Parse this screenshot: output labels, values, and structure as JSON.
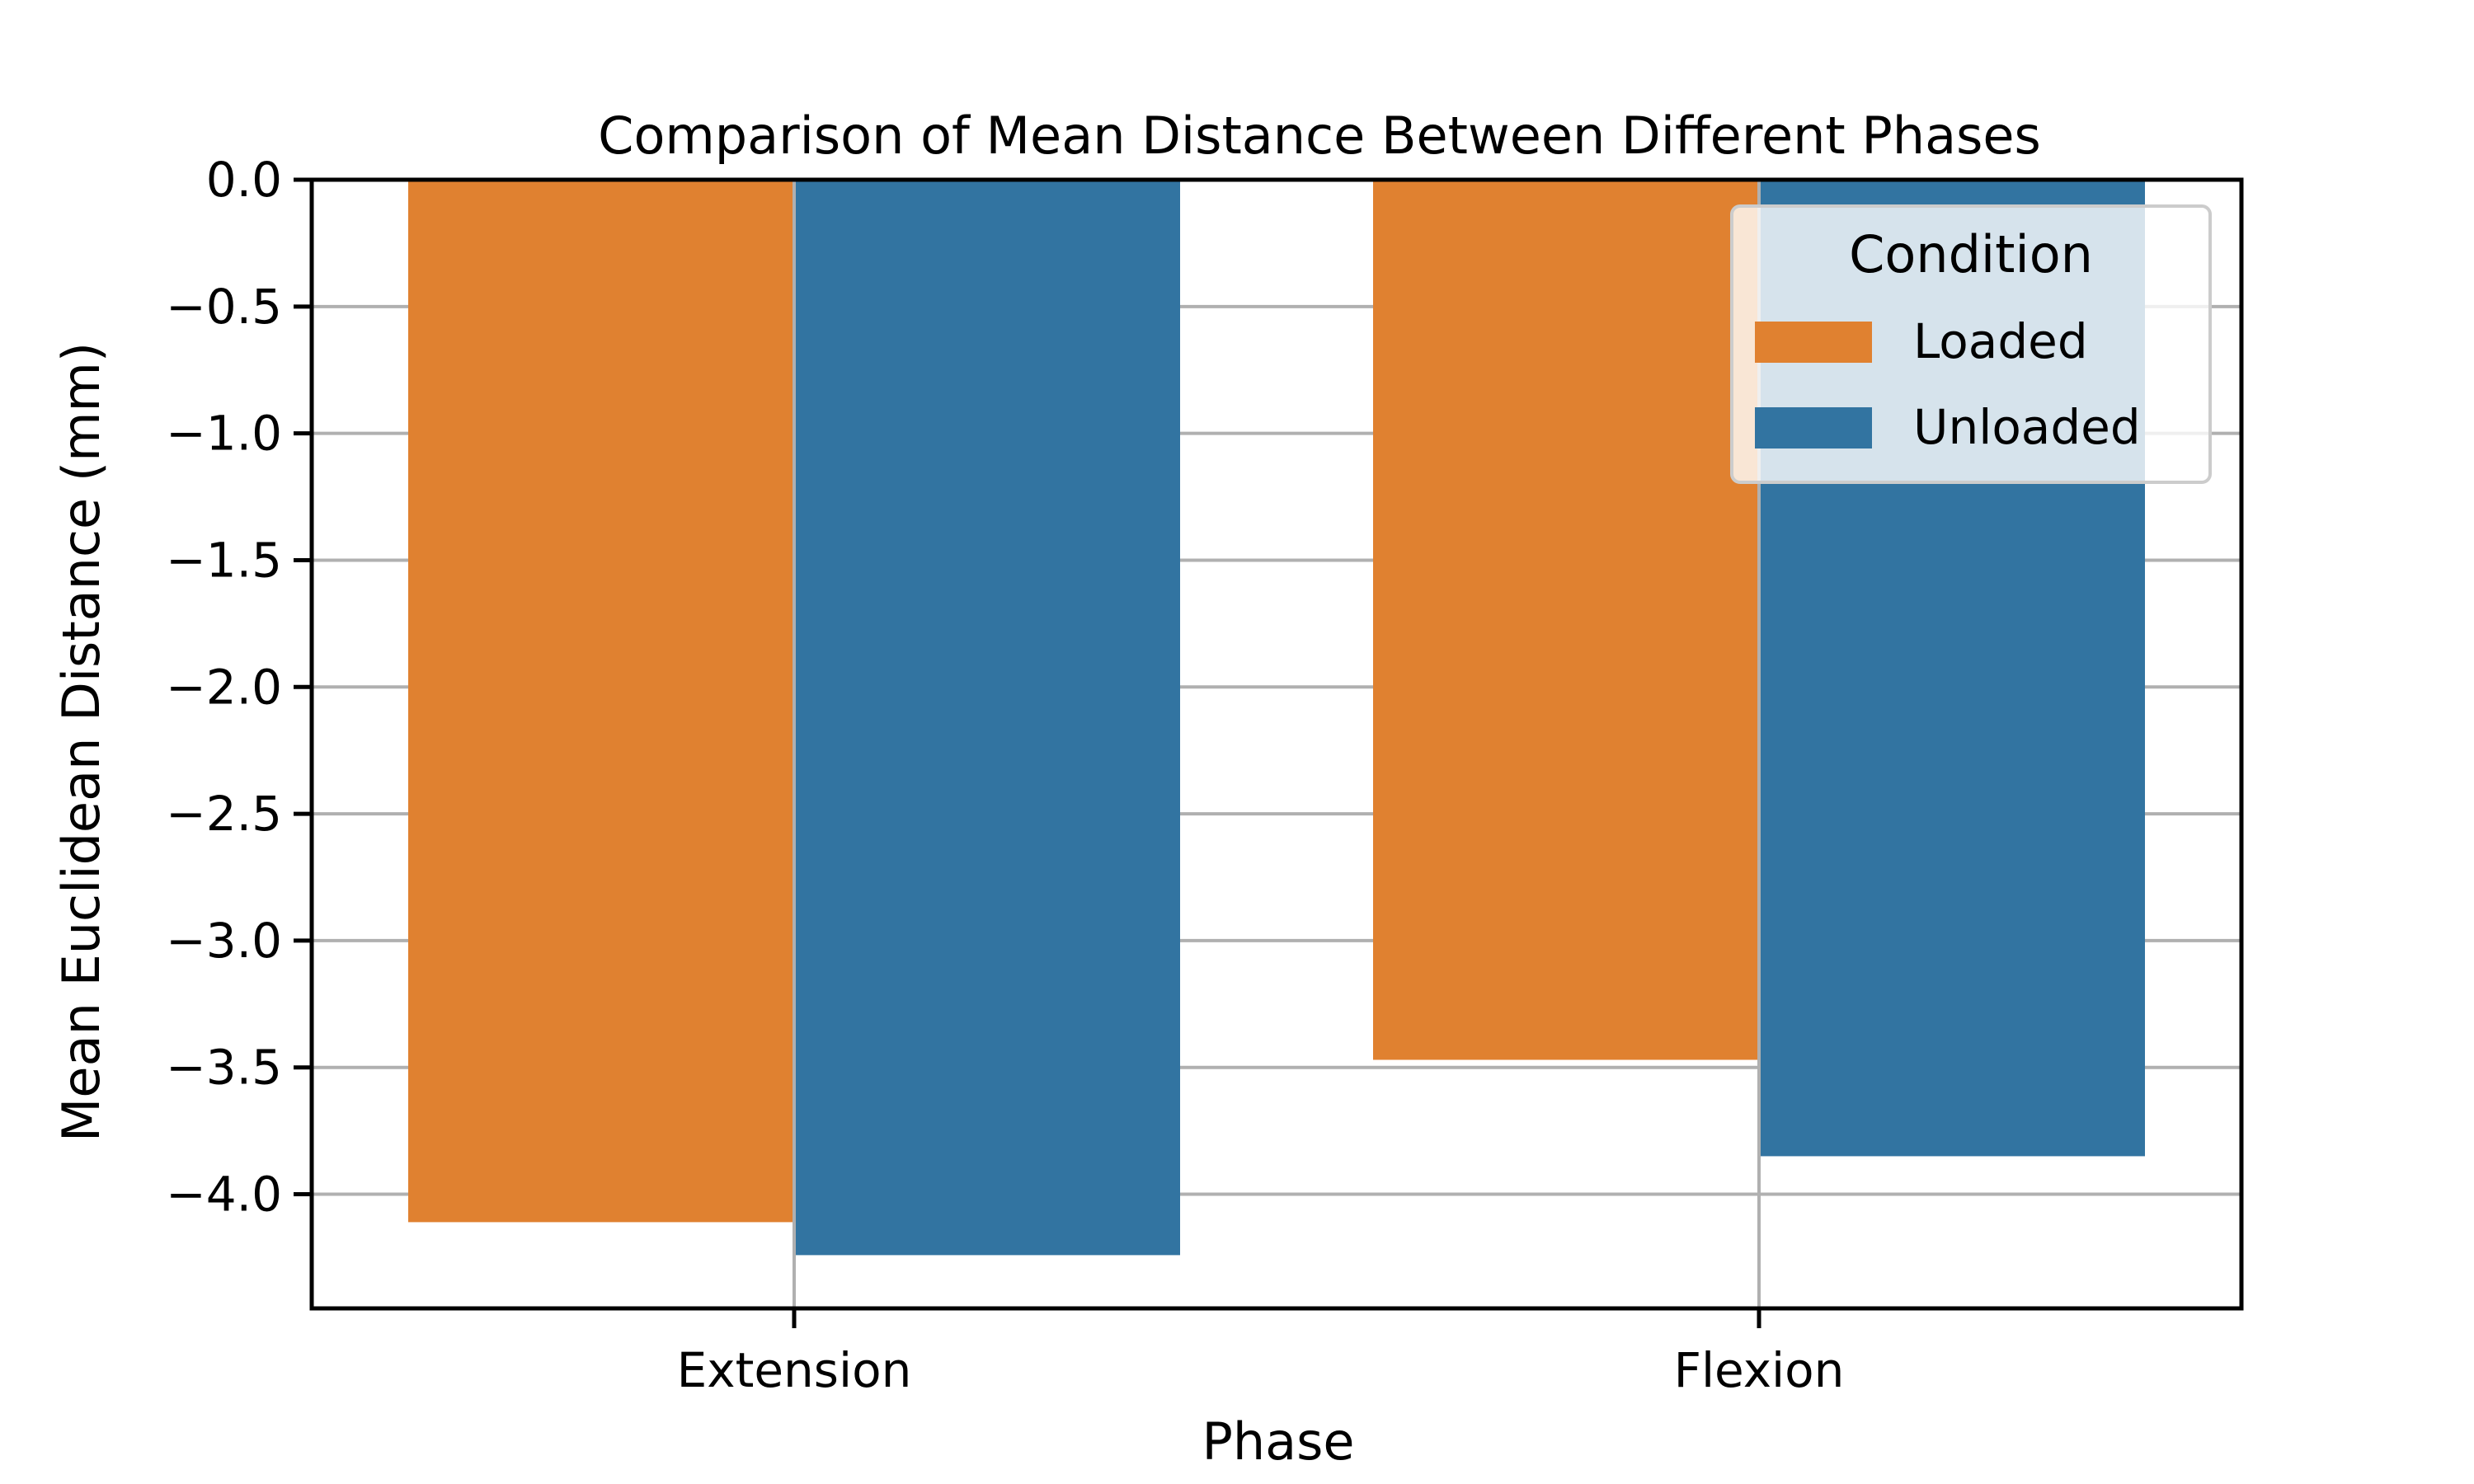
{
  "chart_data": {
    "type": "bar",
    "title": "Comparison of Mean Distance Between Different Phases",
    "xlabel": "Phase",
    "ylabel": "Mean Euclidean Distance (mm)",
    "categories": [
      "Extension",
      "Flexion"
    ],
    "series": [
      {
        "name": "Loaded",
        "color": "#e08130",
        "values": [
          -4.11,
          -3.47
        ]
      },
      {
        "name": "Unloaded",
        "color": "#3274a1",
        "values": [
          -4.24,
          -3.85
        ]
      }
    ],
    "ylim": [
      -4.45,
      0.0
    ],
    "yticks": [
      0.0,
      -0.5,
      -1.0,
      -1.5,
      -2.0,
      -2.5,
      -3.0,
      -3.5,
      -4.0
    ],
    "ytick_labels": [
      "0.0",
      "−0.5",
      "−1.0",
      "−1.5",
      "−2.0",
      "−2.5",
      "−3.0",
      "−3.5",
      "−4.0"
    ],
    "grid": true,
    "legend": {
      "title": "Condition",
      "position": "top-right"
    }
  }
}
